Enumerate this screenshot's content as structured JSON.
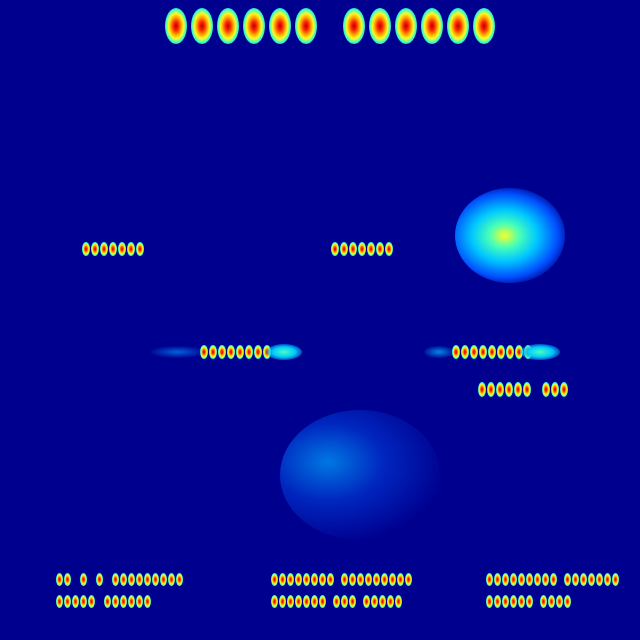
{
  "colors": {
    "background": "#00008f",
    "peak": "#b80000",
    "high": "#ff2a00",
    "mid_high": "#ffb000",
    "mid": "#f6ff2a",
    "mid_low": "#46ffb8",
    "low": "#00c8ff"
  },
  "heatmap": {
    "title_text_groups": [
      6,
      6
    ],
    "label_rows": [
      {
        "region": "upper-left-label",
        "glyph_count": 7
      },
      {
        "region": "upper-center-label",
        "glyph_count": 7
      },
      {
        "region": "middle-left-label",
        "glyph_count": 8
      },
      {
        "region": "middle-right-label",
        "glyph_count": 9
      },
      {
        "region": "middle-right-sublabel",
        "glyph_groups": [
          6,
          3
        ]
      },
      {
        "region": "footer-left-line-1",
        "glyph_groups": [
          2,
          1,
          1,
          9
        ]
      },
      {
        "region": "footer-left-line-2",
        "glyph_groups": [
          5,
          6
        ]
      },
      {
        "region": "footer-center-line-1",
        "glyph_groups": [
          8,
          9
        ]
      },
      {
        "region": "footer-center-line-2",
        "glyph_groups": [
          7,
          3,
          5
        ]
      },
      {
        "region": "footer-right-line-1",
        "glyph_groups": [
          9,
          7
        ]
      },
      {
        "region": "footer-right-line-2",
        "glyph_groups": [
          6,
          4
        ]
      }
    ],
    "diffuse_hotspots": [
      {
        "region": "upper-right-image",
        "intensity": 0.85
      },
      {
        "region": "center-image",
        "intensity": 0.35
      }
    ]
  }
}
